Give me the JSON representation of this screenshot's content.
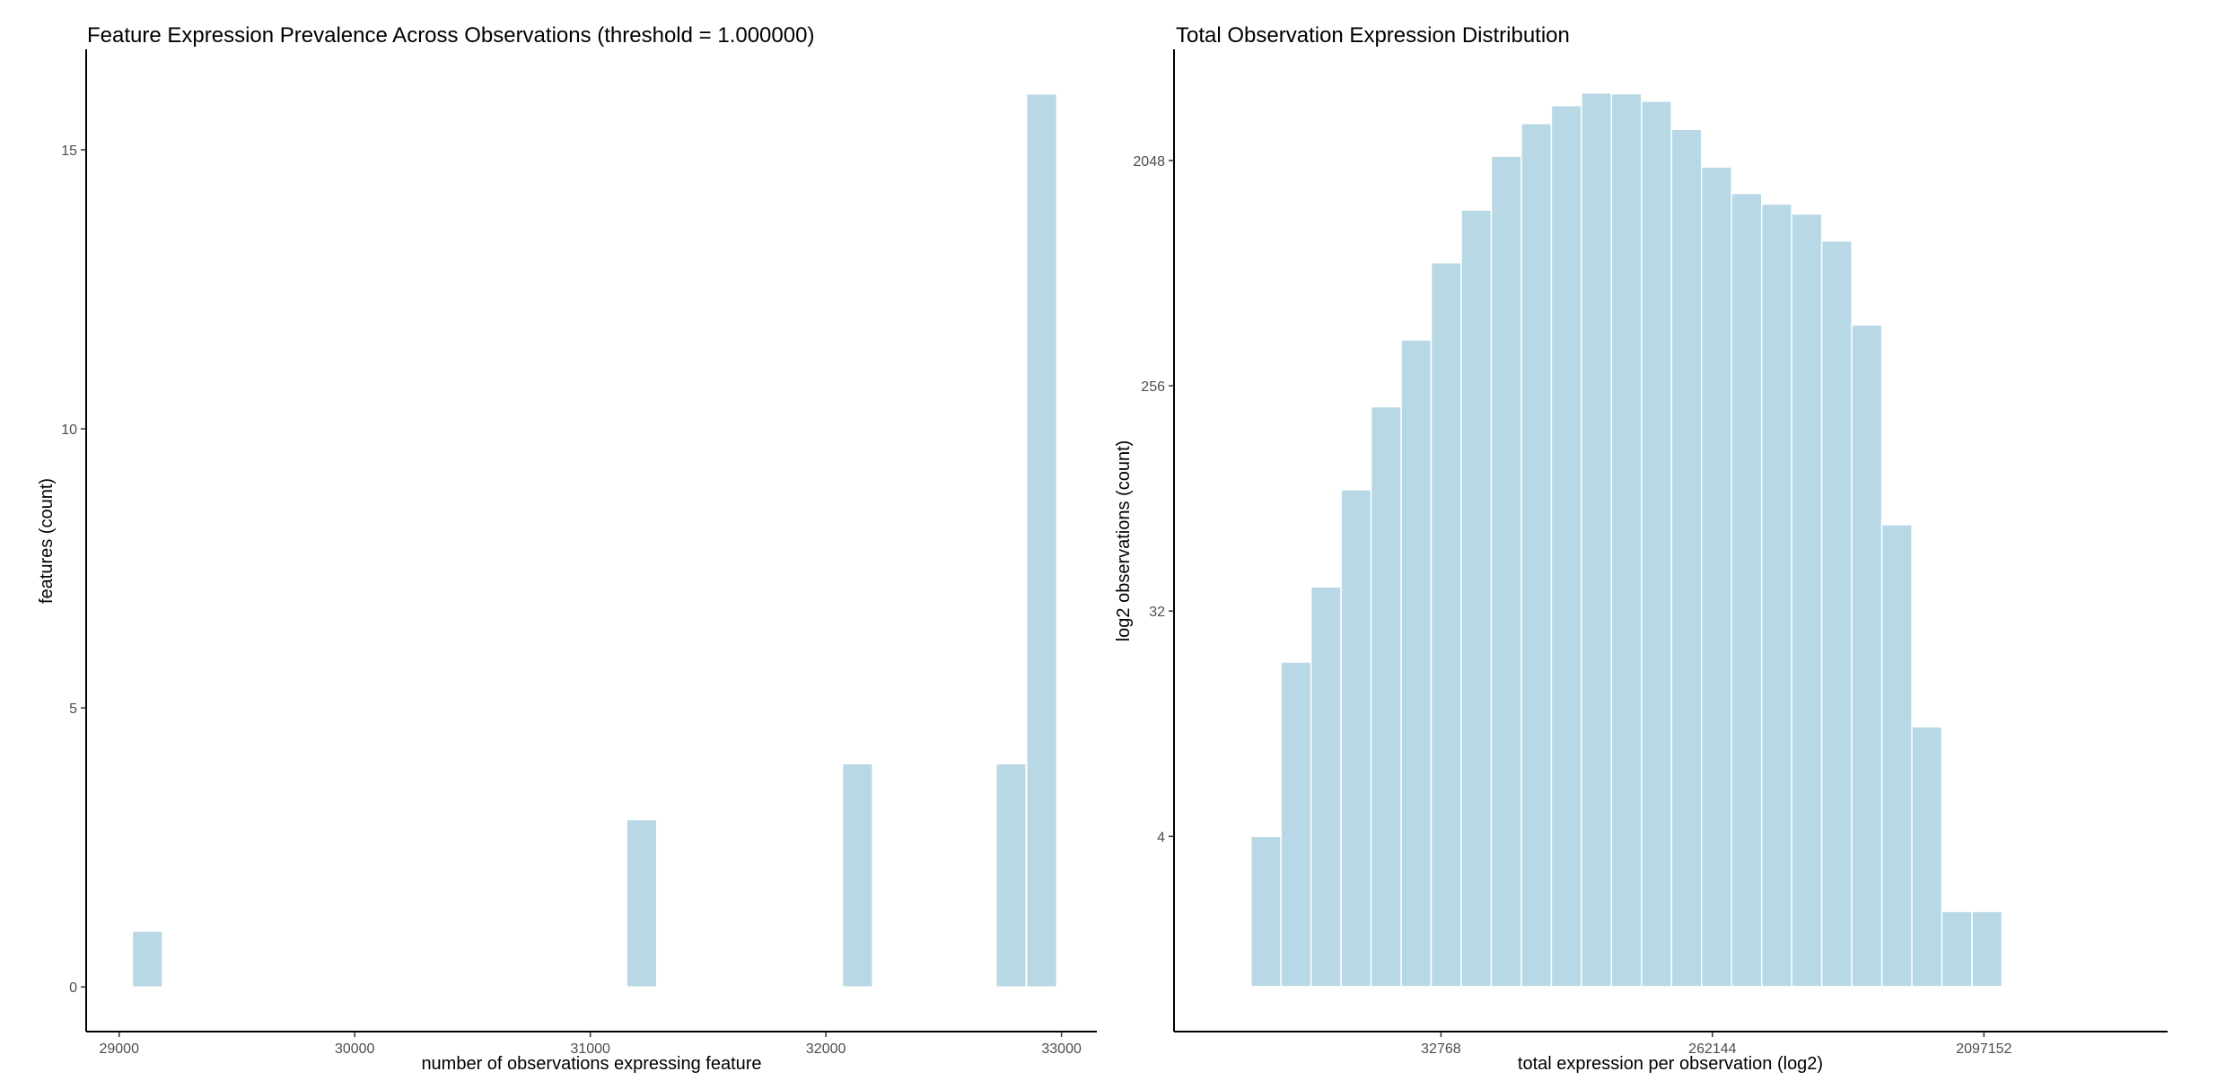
{
  "bar_fill": "#b7d8e4",
  "bar_stroke": "#ffffff",
  "chart_data": [
    {
      "type": "bar",
      "title": "Feature Expression Prevalence Across Observations (threshold = 1.000000)",
      "xlabel": "number of observations expressing feature",
      "ylabel": "features (count)",
      "xlim": [
        28860,
        33150
      ],
      "ylim": [
        -0.8,
        16.8
      ],
      "xticks": [
        29000,
        30000,
        31000,
        32000,
        33000
      ],
      "yticks": [
        0,
        5,
        10,
        15
      ],
      "bin_width": 128,
      "bins": [
        {
          "x": 29120,
          "count": 1
        },
        {
          "x": 31218,
          "count": 3
        },
        {
          "x": 32134,
          "count": 4
        },
        {
          "x": 32786,
          "count": 4
        },
        {
          "x": 32916,
          "count": 16
        }
      ],
      "grid": false
    },
    {
      "type": "bar",
      "title": "Total Observation Expression Distribution",
      "xlabel": "total expression per observation (log2)",
      "ylabel": "log2 observations (count)",
      "x_scale": "log2",
      "y_scale": "log2",
      "xlim_log2": [
        12.05,
        23.03
      ],
      "ylim_log2": [
        -0.6,
        12.48
      ],
      "xticks": [
        32768,
        262144,
        2097152
      ],
      "yticks": [
        4,
        32,
        256,
        2048
      ],
      "bin_start_log2": 12.9,
      "bin_width_log2": 0.332,
      "counts": [
        4,
        20,
        40,
        98,
        211,
        391,
        797,
        1296,
        2130,
        2880,
        3400,
        3820,
        3790,
        3540,
        2730,
        1930,
        1510,
        1370,
        1250,
        975,
        449,
        71,
        11,
        2,
        2
      ],
      "grid": false
    }
  ]
}
